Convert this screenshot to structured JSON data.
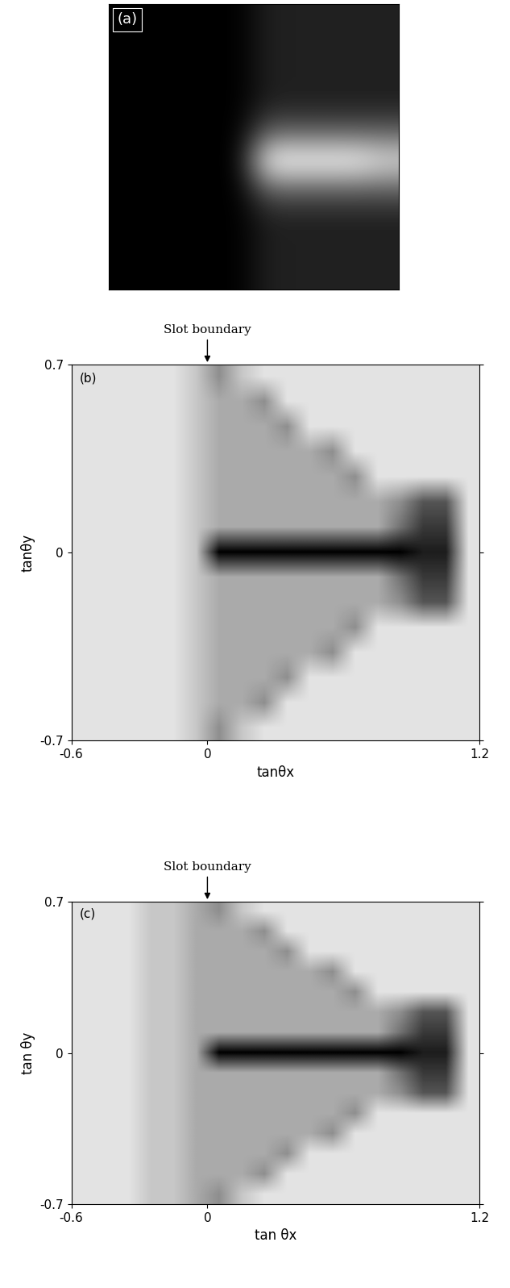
{
  "chart_data": [
    {
      "type": "image",
      "label": "(a)",
      "tick_labels": false,
      "cells": [
        [
          1,
          1,
          1,
          1,
          1,
          2,
          2,
          2,
          2,
          2
        ],
        [
          1,
          1,
          1,
          1,
          1,
          2,
          2,
          2,
          2,
          2
        ],
        [
          1,
          1,
          1,
          1,
          1,
          2,
          2,
          2,
          2,
          2
        ],
        [
          1,
          1,
          1,
          1,
          1,
          2,
          2,
          2,
          2,
          2
        ],
        [
          1,
          1,
          1,
          1,
          1,
          4,
          4,
          4,
          4,
          4
        ],
        [
          1,
          1,
          1,
          1,
          1,
          9,
          9,
          9,
          9,
          8
        ],
        [
          1,
          1,
          1,
          1,
          1,
          4,
          4,
          4,
          4,
          4
        ],
        [
          1,
          1,
          1,
          1,
          1,
          2,
          2,
          2,
          2,
          2
        ],
        [
          1,
          1,
          1,
          1,
          1,
          2,
          2,
          2,
          2,
          2
        ],
        [
          1,
          1,
          1,
          1,
          1,
          2,
          2,
          2,
          2,
          2
        ]
      ]
    },
    {
      "type": "density",
      "label": "(b)",
      "annotation": "Slot boundary",
      "annotation_x": 0,
      "xlabel": "tanθx",
      "ylabel": "tanθy",
      "xlim": [
        -0.6,
        1.2
      ],
      "ylim": [
        -0.7,
        0.7
      ],
      "xticks": [
        -0.6,
        0,
        1.2
      ],
      "yticks": [
        -0.7,
        0,
        0.7
      ],
      "cells": [
        [
          1,
          1,
          1,
          1,
          1,
          2,
          4,
          2,
          1,
          1,
          1,
          1,
          1,
          1,
          1,
          1,
          1,
          1
        ],
        [
          1,
          1,
          1,
          1,
          1,
          2,
          3,
          3,
          4,
          1,
          1,
          1,
          1,
          1,
          1,
          1,
          1,
          1
        ],
        [
          1,
          1,
          1,
          1,
          1,
          2,
          3,
          3,
          3,
          4,
          1,
          1,
          1,
          1,
          1,
          1,
          1,
          1
        ],
        [
          1,
          1,
          1,
          1,
          1,
          2,
          3,
          3,
          3,
          3,
          3,
          4,
          1,
          1,
          1,
          1,
          1,
          1
        ],
        [
          1,
          1,
          1,
          1,
          1,
          2,
          3,
          3,
          3,
          3,
          3,
          3,
          4,
          1,
          1,
          1,
          1,
          1
        ],
        [
          1,
          1,
          1,
          1,
          1,
          2,
          3,
          3,
          3,
          3,
          3,
          3,
          3,
          3,
          4,
          6,
          6,
          1
        ],
        [
          1,
          1,
          1,
          1,
          1,
          2,
          3,
          3,
          3,
          3,
          3,
          3,
          3,
          3,
          5,
          7,
          7,
          1
        ],
        [
          1,
          1,
          1,
          1,
          1,
          2,
          9,
          9,
          9,
          9,
          9,
          9,
          9,
          9,
          9,
          8,
          8,
          1
        ],
        [
          1,
          1,
          1,
          1,
          1,
          2,
          3,
          3,
          3,
          3,
          3,
          3,
          3,
          3,
          5,
          7,
          7,
          1
        ],
        [
          1,
          1,
          1,
          1,
          1,
          2,
          3,
          3,
          3,
          3,
          3,
          3,
          3,
          3,
          4,
          6,
          6,
          1
        ],
        [
          1,
          1,
          1,
          1,
          1,
          2,
          3,
          3,
          3,
          3,
          3,
          3,
          4,
          1,
          1,
          1,
          1,
          1
        ],
        [
          1,
          1,
          1,
          1,
          1,
          2,
          3,
          3,
          3,
          3,
          3,
          4,
          1,
          1,
          1,
          1,
          1,
          1
        ],
        [
          1,
          1,
          1,
          1,
          1,
          2,
          3,
          3,
          3,
          4,
          1,
          1,
          1,
          1,
          1,
          1,
          1,
          1
        ],
        [
          1,
          1,
          1,
          1,
          1,
          2,
          3,
          3,
          4,
          1,
          1,
          1,
          1,
          1,
          1,
          1,
          1,
          1
        ],
        [
          1,
          1,
          1,
          1,
          1,
          2,
          4,
          2,
          1,
          1,
          1,
          1,
          1,
          1,
          1,
          1,
          1,
          1
        ]
      ]
    },
    {
      "type": "density",
      "label": "(c)",
      "annotation": "Slot boundary",
      "annotation_x": 0,
      "xlabel": "tan θx",
      "ylabel": "tan θy",
      "xlim": [
        -0.6,
        1.2
      ],
      "ylim": [
        -0.7,
        0.7
      ],
      "xticks": [
        -0.6,
        0,
        1.2
      ],
      "yticks": [
        -0.7,
        0,
        0.7
      ],
      "cells": [
        [
          1,
          1,
          1,
          2,
          2,
          3,
          4,
          2,
          1,
          1,
          1,
          1,
          1,
          1,
          1,
          1,
          1,
          1
        ],
        [
          1,
          1,
          1,
          2,
          2,
          3,
          3,
          3,
          4,
          1,
          1,
          1,
          1,
          1,
          1,
          1,
          1,
          1
        ],
        [
          1,
          1,
          1,
          2,
          2,
          3,
          3,
          3,
          3,
          4,
          1,
          1,
          1,
          1,
          1,
          1,
          1,
          1
        ],
        [
          1,
          1,
          1,
          2,
          2,
          3,
          3,
          3,
          3,
          3,
          3,
          4,
          1,
          1,
          1,
          1,
          1,
          1
        ],
        [
          1,
          1,
          1,
          2,
          2,
          3,
          3,
          3,
          3,
          3,
          3,
          3,
          4,
          1,
          1,
          1,
          1,
          1
        ],
        [
          1,
          1,
          1,
          2,
          2,
          3,
          3,
          3,
          3,
          3,
          3,
          3,
          3,
          3,
          4,
          6,
          6,
          1
        ],
        [
          1,
          1,
          1,
          2,
          2,
          3,
          3,
          3,
          3,
          3,
          3,
          3,
          3,
          3,
          5,
          7,
          7,
          1
        ],
        [
          1,
          1,
          1,
          2,
          2,
          3,
          9,
          9,
          9,
          9,
          9,
          9,
          9,
          9,
          9,
          8,
          8,
          1
        ],
        [
          1,
          1,
          1,
          2,
          2,
          3,
          3,
          3,
          3,
          3,
          3,
          3,
          3,
          3,
          5,
          7,
          7,
          1
        ],
        [
          1,
          1,
          1,
          2,
          2,
          3,
          3,
          3,
          3,
          3,
          3,
          3,
          3,
          3,
          4,
          6,
          6,
          1
        ],
        [
          1,
          1,
          1,
          2,
          2,
          3,
          3,
          3,
          3,
          3,
          3,
          3,
          4,
          1,
          1,
          1,
          1,
          1
        ],
        [
          1,
          1,
          1,
          2,
          2,
          3,
          3,
          3,
          3,
          3,
          3,
          4,
          1,
          1,
          1,
          1,
          1,
          1
        ],
        [
          1,
          1,
          1,
          2,
          2,
          3,
          3,
          3,
          3,
          4,
          1,
          1,
          1,
          1,
          1,
          1,
          1,
          1
        ],
        [
          1,
          1,
          1,
          2,
          2,
          3,
          3,
          3,
          4,
          1,
          1,
          1,
          1,
          1,
          1,
          1,
          1,
          1
        ],
        [
          1,
          1,
          1,
          2,
          2,
          3,
          4,
          2,
          1,
          1,
          1,
          1,
          1,
          1,
          1,
          1,
          1,
          1
        ]
      ]
    }
  ]
}
